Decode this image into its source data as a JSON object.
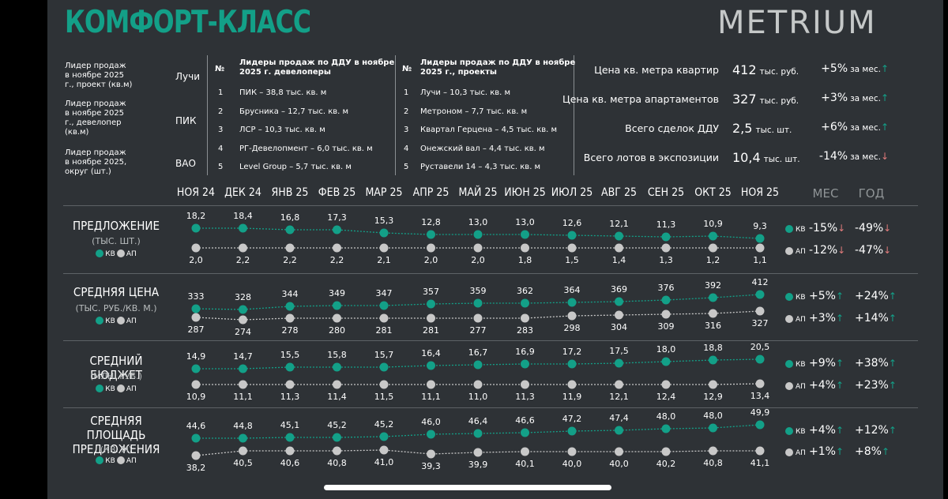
{
  "header": {
    "title": "КОМФОРТ-КЛАСС",
    "brand": "METRIUM"
  },
  "leaders": [
    {
      "label": "Лидер продаж\nв ноябре 2025\nг., проект (кв.м)",
      "value": "Лучи"
    },
    {
      "label": "Лидер продаж\nв ноябре 2025\nг., девелопер\n(кв.м)",
      "value": "ПИК"
    },
    {
      "label": "Лидер продаж\nв ноябре 2025,\nокруг (шт.)",
      "value": "ВАО"
    }
  ],
  "developers_table": {
    "num_header": "№",
    "header": "Лидеры продаж по ДДУ в ноябре\n2025 г. девелоперы",
    "rows": [
      {
        "n": "1",
        "text": "ПИК – 38,8 тыс. кв. м"
      },
      {
        "n": "2",
        "text": "Брусника – 12,7 тыс. кв. м"
      },
      {
        "n": "3",
        "text": "ЛСР – 10,3 тыс. кв. м"
      },
      {
        "n": "4",
        "text": "РГ-Девелопмент – 6,0 тыс. кв. м"
      },
      {
        "n": "5",
        "text": "Level Group – 5,7 тыс. кв. м"
      }
    ]
  },
  "projects_table": {
    "num_header": "№",
    "header": "Лидеры продаж по ДДУ в ноябре\n2025 г., проекты",
    "rows": [
      {
        "n": "1",
        "text": "Лучи – 10,3 тыс. кв. м"
      },
      {
        "n": "2",
        "text": "Метроном – 7,7 тыс. кв. м"
      },
      {
        "n": "3",
        "text": "Квартал Герцена – 4,5 тыс. кв. м"
      },
      {
        "n": "4",
        "text": "Онежский вал – 4,4 тыс. кв. м"
      },
      {
        "n": "5",
        "text": "Руставели 14 – 4,3 тыс. кв. м"
      }
    ]
  },
  "stats": [
    {
      "label": "Цена кв. метра квартир",
      "value": "412",
      "unit": "тыс. руб.",
      "change": "+5%",
      "suffix": "за мес.",
      "dir": "up"
    },
    {
      "label": "Цена кв. метра апартаментов",
      "value": "327",
      "unit": "тыс. руб.",
      "change": "+3%",
      "suffix": "за мес.",
      "dir": "up"
    },
    {
      "label": "Всего сделок ДДУ",
      "value": "2,5",
      "unit": "тыс. шт.",
      "change": "+6%",
      "suffix": "за мес.",
      "dir": "up"
    },
    {
      "label": "Всего лотов в экспозиции",
      "value": "10,4",
      "unit": "тыс. шт.",
      "change": "-14%",
      "suffix": "за мес.",
      "dir": "down"
    }
  ],
  "col_mes": "МЕС",
  "col_god": "ГОД",
  "legend_kv": "КВ",
  "legend_ap": "АП",
  "colors": {
    "kv": "#13a088",
    "ap": "#c8c8c8",
    "up": "#13a088",
    "down": "#e07b7b"
  },
  "chart_data": {
    "type": "line",
    "x": [
      "НОЯ 24",
      "ДЕК 24",
      "ЯНВ 25",
      "ФЕВ 25",
      "МАР 25",
      "АПР 25",
      "МАЙ 25",
      "ИЮН 25",
      "ИЮЛ 25",
      "АВГ 25",
      "СЕН 25",
      "ОКТ 25",
      "НОЯ 25"
    ],
    "panels": [
      {
        "title": "ПРЕДЛОЖЕНИЕ",
        "unit": "(ТЫС. ШТ.)",
        "series": [
          {
            "name": "КВ",
            "values": [
              18.2,
              18.4,
              16.8,
              17.3,
              15.3,
              12.8,
              13.0,
              13.0,
              12.6,
              12.1,
              11.3,
              10.9,
              9.3
            ],
            "labels": [
              "18,2",
              "18,4",
              "16,8",
              "17,3",
              "15,3",
              "12,8",
              "13,0",
              "13,0",
              "12,6",
              "12,1",
              "11,3",
              "10,9",
              "9,3"
            ],
            "mes": "-15%",
            "mes_dir": "down",
            "god": "-49%",
            "god_dir": "down"
          },
          {
            "name": "АП",
            "values": [
              2.0,
              2.2,
              2.2,
              2.2,
              2.1,
              2.0,
              2.0,
              1.8,
              1.5,
              1.4,
              1.3,
              1.2,
              1.1
            ],
            "labels": [
              "2,0",
              "2,2",
              "2,2",
              "2,2",
              "2,1",
              "2,0",
              "2,0",
              "1,8",
              "1,5",
              "1,4",
              "1,3",
              "1,2",
              "1,1"
            ],
            "mes": "-12%",
            "mes_dir": "down",
            "god": "-47%",
            "god_dir": "down"
          }
        ]
      },
      {
        "title": "СРЕДНЯЯ ЦЕНА",
        "unit": "(ТЫС. РУБ./КВ. М.)",
        "series": [
          {
            "name": "КВ",
            "values": [
              333,
              328,
              344,
              349,
              347,
              357,
              359,
              362,
              364,
              369,
              376,
              392,
              412
            ],
            "labels": [
              "333",
              "328",
              "344",
              "349",
              "347",
              "357",
              "359",
              "362",
              "364",
              "369",
              "376",
              "392",
              "412"
            ],
            "mes": "+5%",
            "mes_dir": "up",
            "god": "+24%",
            "god_dir": "up"
          },
          {
            "name": "АП",
            "values": [
              287,
              274,
              278,
              280,
              281,
              281,
              277,
              283,
              298,
              304,
              309,
              316,
              327
            ],
            "labels": [
              "287",
              "274",
              "278",
              "280",
              "281",
              "281",
              "277",
              "283",
              "298",
              "304",
              "309",
              "316",
              "327"
            ],
            "mes": "+3%",
            "mes_dir": "up",
            "god": "+14%",
            "god_dir": "up"
          }
        ]
      },
      {
        "title": "СРЕДНИЙ БЮДЖЕТ",
        "unit": "(МЛН. РУБ.)",
        "series": [
          {
            "name": "КВ",
            "values": [
              14.9,
              14.7,
              15.5,
              15.8,
              15.7,
              16.4,
              16.7,
              16.9,
              17.2,
              17.5,
              18.0,
              18.8,
              20.5
            ],
            "labels": [
              "14,9",
              "14,7",
              "15,5",
              "15,8",
              "15,7",
              "16,4",
              "16,7",
              "16,9",
              "17,2",
              "17,5",
              "18,0",
              "18,8",
              "20,5"
            ],
            "mes": "+9%",
            "mes_dir": "up",
            "god": "+38%",
            "god_dir": "up"
          },
          {
            "name": "АП",
            "values": [
              10.9,
              11.1,
              11.3,
              11.4,
              11.5,
              11.1,
              11.0,
              11.3,
              11.9,
              12.1,
              12.4,
              12.9,
              13.4
            ],
            "labels": [
              "10,9",
              "11,1",
              "11,3",
              "11,4",
              "11,5",
              "11,1",
              "11,0",
              "11,3",
              "11,9",
              "12,1",
              "12,4",
              "12,9",
              "13,4"
            ],
            "mes": "+4%",
            "mes_dir": "up",
            "god": "+23%",
            "god_dir": "up"
          }
        ]
      },
      {
        "title": "СРЕДНЯЯ ПЛОЩАДЬ\nПРЕДЛОЖЕНИЯ",
        "unit": "(КВ. М)",
        "series": [
          {
            "name": "КВ",
            "values": [
              44.6,
              44.8,
              45.1,
              45.2,
              45.2,
              46.0,
              46.4,
              46.6,
              47.2,
              47.4,
              48.0,
              48.0,
              49.9
            ],
            "labels": [
              "44,6",
              "44,8",
              "45,1",
              "45,2",
              "45,2",
              "46,0",
              "46,4",
              "46,6",
              "47,2",
              "47,4",
              "48,0",
              "48,0",
              "49,9"
            ],
            "mes": "+4%",
            "mes_dir": "up",
            "god": "+12%",
            "god_dir": "up"
          },
          {
            "name": "АП",
            "values": [
              38.2,
              40.5,
              40.6,
              40.8,
              41.0,
              39.3,
              39.9,
              40.1,
              40.0,
              40.0,
              40.2,
              40.8,
              41.1
            ],
            "labels": [
              "38,2",
              "40,5",
              "40,6",
              "40,8",
              "41,0",
              "39,3",
              "39,9",
              "40,1",
              "40,0",
              "40,0",
              "40,2",
              "40,8",
              "41,1"
            ],
            "mes": "+1%",
            "mes_dir": "up",
            "god": "+8%",
            "god_dir": "up"
          }
        ]
      }
    ]
  }
}
